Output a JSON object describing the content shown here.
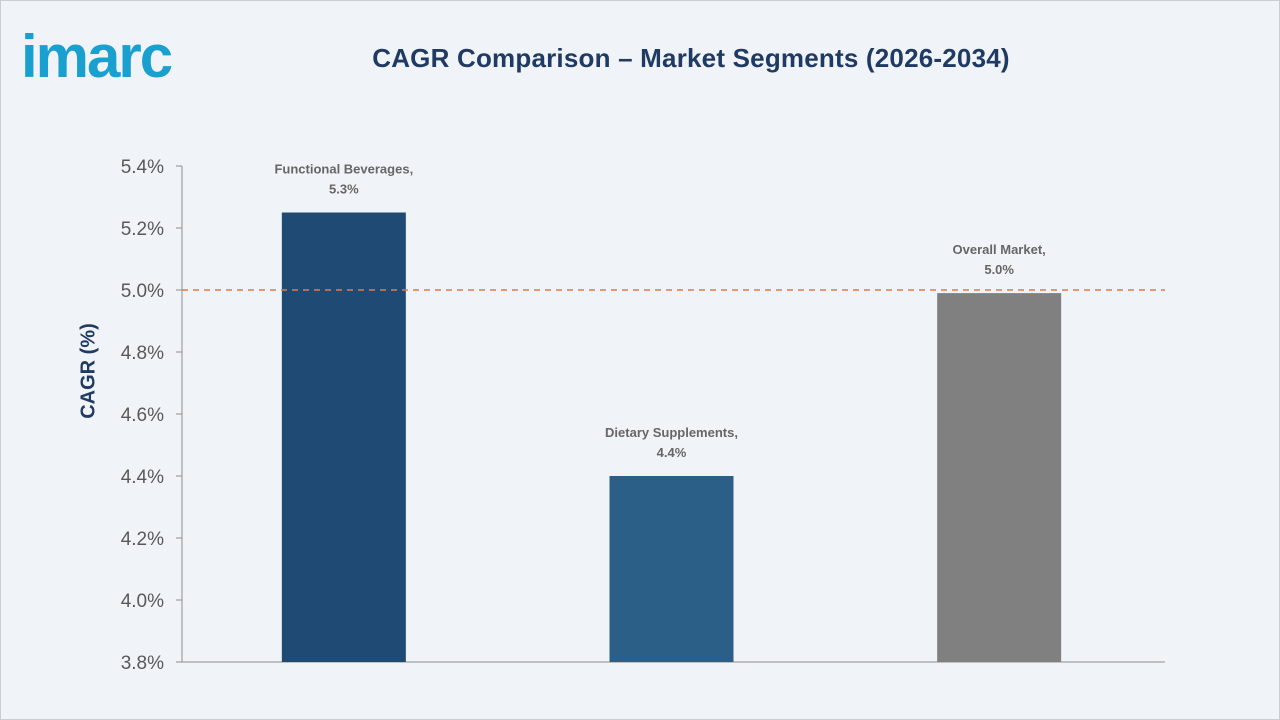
{
  "brand": {
    "logo_text": "imarc",
    "color": "#1aa0cf"
  },
  "chart_data": {
    "type": "bar",
    "title": "CAGR Comparison – Market Segments (2026-2034)",
    "xlabel": "",
    "ylabel": "CAGR (%)",
    "ylim": [
      3.8,
      5.4
    ],
    "yticks": [
      3.8,
      4.0,
      4.2,
      4.4,
      4.6,
      4.8,
      5.0,
      5.2,
      5.4
    ],
    "ytick_labels": [
      "3.8%",
      "4.0%",
      "4.2%",
      "4.4%",
      "4.6%",
      "4.8%",
      "5.0%",
      "5.2%",
      "5.4%"
    ],
    "categories": [
      "Functional Beverages",
      "Dietary Supplements",
      "Overall Market"
    ],
    "values": [
      5.25,
      4.4,
      4.99
    ],
    "data_labels": [
      [
        "Functional Beverages,",
        "5.3%"
      ],
      [
        "Dietary Supplements,",
        "4.4%"
      ],
      [
        "Overall Market,",
        "5.0%"
      ]
    ],
    "colors": [
      "#1f4a73",
      "#2c5f88",
      "#808080"
    ],
    "reference_line": {
      "value": 5.0,
      "color": "#e07b4c",
      "style": "dashed"
    },
    "grid": false,
    "legend": "none"
  }
}
